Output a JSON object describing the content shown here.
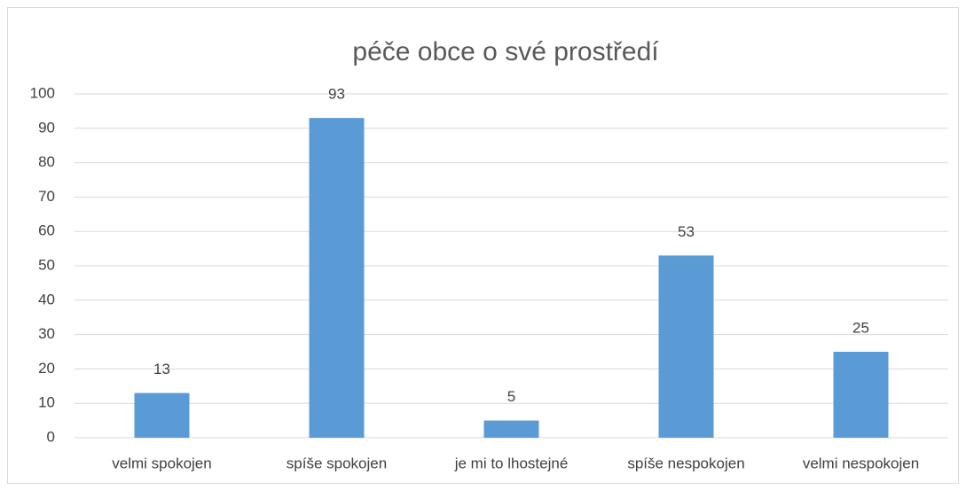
{
  "chart_data": {
    "type": "bar",
    "title": "péče obce o své prostředí",
    "categories": [
      "velmi spokojen",
      "spíše spokojen",
      "je mi to lhostejné",
      "spíše nespokojen",
      "velmi nespokojen"
    ],
    "values": [
      13,
      93,
      5,
      53,
      25
    ],
    "color": "#5b9bd5",
    "ylim": [
      0,
      100
    ],
    "yticks": [
      0,
      10,
      20,
      30,
      40,
      50,
      60,
      70,
      80,
      90,
      100
    ],
    "grid": true,
    "data_labels": true
  }
}
